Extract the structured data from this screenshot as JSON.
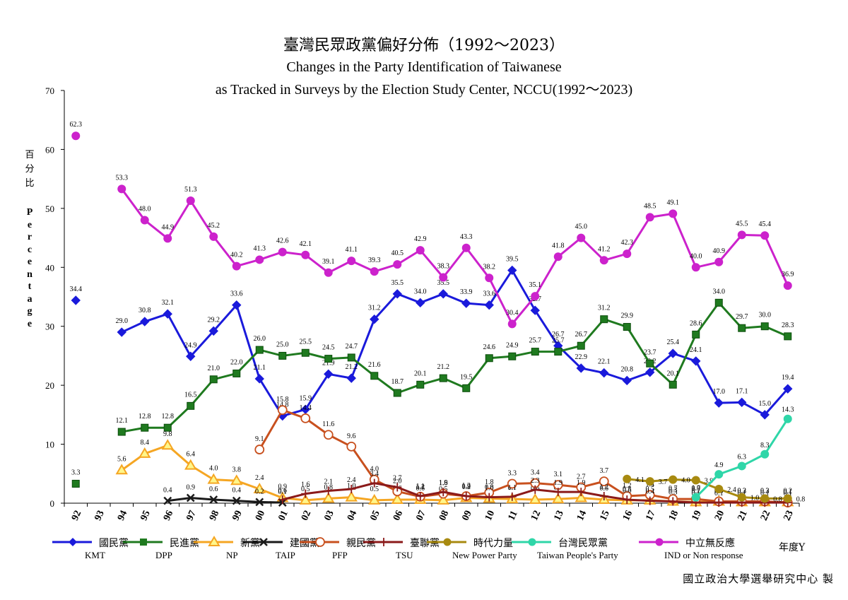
{
  "title_cn": "臺灣民眾政黨偏好分佈（1992～2023）",
  "title_en_1": "Changes in the Party Identification of Taiwanese",
  "title_en_2": "as Tracked in Surveys by the Election Study Center, NCCU(1992～2023)",
  "ylabel_cn": "百分比",
  "ylabel_en": "Percentage",
  "xlabel": "年度Y",
  "credit": "國立政治大學選舉研究中心 製",
  "chart_data": {
    "type": "line",
    "title": "臺灣民眾政黨偏好分佈（1992～2023）",
    "ylabel": "Percentage",
    "xlabel": "年度Y",
    "ylim": [
      0,
      70
    ],
    "yticks": [
      "0",
      "10",
      "20",
      "30",
      "40",
      "50",
      "60",
      "70"
    ],
    "categories": [
      "92",
      "93",
      "94",
      "95",
      "96",
      "97",
      "98",
      "99",
      "00",
      "01",
      "02",
      "03",
      "04",
      "05",
      "06",
      "07",
      "08",
      "09",
      "10",
      "11",
      "12",
      "13",
      "14",
      "15",
      "16",
      "17",
      "18",
      "19",
      "20",
      "21",
      "22",
      "23"
    ],
    "series": [
      {
        "name_cn": "國民黨",
        "name_en": "KMT",
        "color": "#1a1adb",
        "marker": "diamond",
        "values": [
          34.4,
          null,
          29.0,
          30.8,
          32.1,
          24.9,
          29.2,
          33.6,
          21.1,
          14.8,
          15.9,
          21.9,
          21.2,
          31.2,
          35.5,
          34.0,
          35.5,
          33.9,
          33.6,
          39.5,
          32.7,
          26.7,
          22.9,
          22.1,
          20.8,
          22.2,
          25.4,
          24.1,
          17.0,
          17.1,
          15.0,
          19.4
        ]
      },
      {
        "name_cn": "民進黨",
        "name_en": "DPP",
        "color": "#1f7a1f",
        "marker": "square",
        "values": [
          3.3,
          null,
          12.1,
          12.8,
          12.8,
          16.5,
          21.0,
          22.0,
          26.0,
          25.0,
          25.5,
          24.5,
          24.7,
          21.6,
          18.7,
          20.1,
          21.2,
          19.5,
          24.6,
          24.9,
          25.7,
          25.7,
          26.7,
          31.2,
          29.9,
          23.7,
          20.1,
          28.6,
          34.0,
          29.7,
          30.0,
          28.3
        ]
      },
      {
        "name_cn": "新黨",
        "name_en": "NP",
        "color": "#f5a623",
        "marker": "triangle",
        "values": [
          null,
          null,
          5.6,
          8.4,
          9.8,
          6.4,
          4.0,
          3.8,
          2.4,
          0.9,
          0.5,
          0.8,
          1.0,
          0.5,
          0.6,
          0.6,
          0.5,
          0.9,
          0.8,
          0.7,
          0.6,
          0.7,
          0.9,
          0.6,
          0.5,
          0.5,
          0.3,
          0.2,
          0.3,
          0.2,
          0.2,
          0.2
        ]
      },
      {
        "name_cn": "建國黨",
        "name_en": "TAIP",
        "color": "#1a1a1a",
        "marker": "x",
        "values": [
          null,
          null,
          null,
          null,
          0.4,
          0.9,
          0.6,
          0.4,
          0.2,
          0.1,
          null,
          null,
          null,
          null,
          null,
          null,
          null,
          null,
          null,
          null,
          null,
          null,
          null,
          null,
          null,
          null,
          null,
          null,
          null,
          null,
          null,
          null
        ]
      },
      {
        "name_cn": "親民黨",
        "name_en": "PFP",
        "color": "#c8501e",
        "marker": "circle-open",
        "values": [
          null,
          null,
          null,
          null,
          null,
          null,
          null,
          null,
          9.1,
          15.8,
          14.4,
          11.6,
          9.6,
          4.0,
          2.0,
          1.1,
          1.6,
          1.2,
          1.8,
          3.3,
          3.4,
          3.1,
          2.7,
          3.7,
          1.2,
          1.4,
          0.7,
          0.7,
          0.3,
          0.3,
          0.3,
          0.1
        ]
      },
      {
        "name_cn": "臺聯黨",
        "name_en": "TSU",
        "color": "#8b1a1a",
        "marker": "plus",
        "values": [
          null,
          null,
          null,
          null,
          null,
          null,
          null,
          null,
          null,
          0.6,
          1.6,
          2.1,
          2.4,
          3.4,
          2.7,
          1.2,
          1.9,
          1.2,
          1.0,
          1.1,
          2.3,
          1.9,
          1.9,
          1.2,
          0.6,
          0.4,
          0.3,
          0.1,
          0.1,
          0.1,
          0.1,
          0.1
        ]
      },
      {
        "name_cn": "時代力量",
        "name_en": "New Power Party",
        "color": "#a88a10",
        "marker": "circle",
        "values": [
          null,
          null,
          null,
          null,
          null,
          null,
          null,
          null,
          null,
          null,
          null,
          null,
          null,
          null,
          null,
          null,
          null,
          null,
          null,
          null,
          null,
          null,
          null,
          null,
          4.1,
          3.7,
          4.0,
          3.9,
          2.4,
          1.0,
          0.8,
          0.8
        ]
      },
      {
        "name_cn": "台灣民眾黨",
        "name_en": "Taiwan People's Party",
        "color": "#2fd6a8",
        "marker": "circle",
        "values": [
          null,
          null,
          null,
          null,
          null,
          null,
          null,
          null,
          null,
          null,
          null,
          null,
          null,
          null,
          null,
          null,
          null,
          null,
          null,
          null,
          null,
          null,
          null,
          null,
          null,
          null,
          null,
          1.0,
          4.9,
          6.3,
          8.3,
          14.3
        ]
      },
      {
        "name_cn": "中立無反應",
        "name_en": "IND or Non response",
        "color": "#cc22cc",
        "marker": "circle",
        "values": [
          62.3,
          null,
          53.3,
          48.0,
          44.9,
          51.3,
          45.2,
          40.2,
          41.3,
          42.6,
          42.1,
          39.1,
          41.1,
          39.3,
          40.5,
          42.9,
          38.3,
          43.3,
          38.2,
          30.4,
          35.1,
          41.8,
          45.0,
          41.2,
          42.3,
          48.5,
          49.1,
          40.0,
          40.9,
          45.5,
          45.4,
          36.9
        ]
      }
    ]
  }
}
